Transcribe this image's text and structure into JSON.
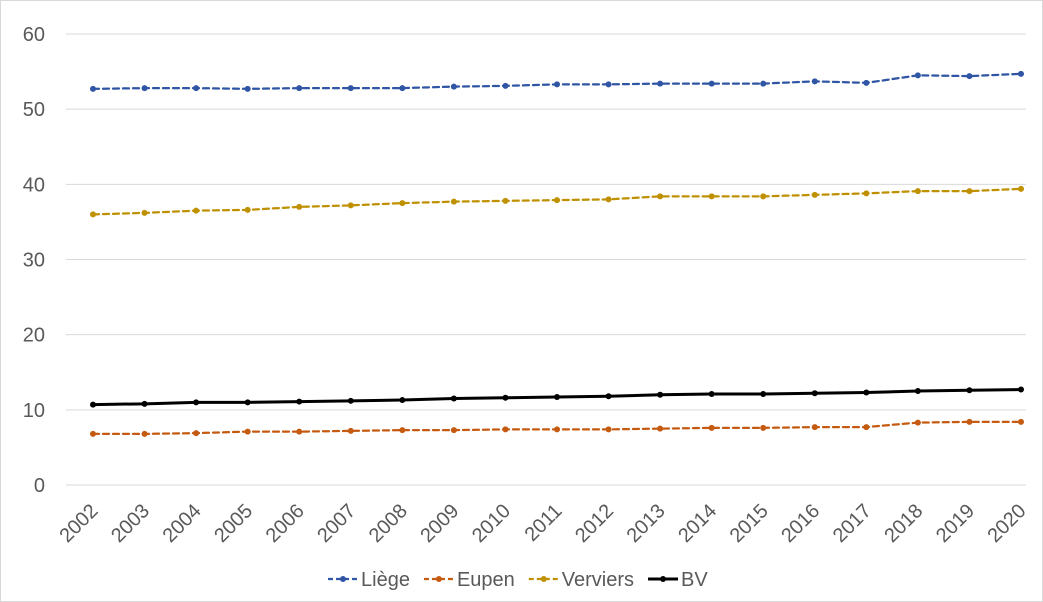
{
  "chart_data": {
    "type": "line",
    "title": "",
    "xlabel": "",
    "ylabel": "",
    "categories": [
      "2002",
      "2003",
      "2004",
      "2005",
      "2006",
      "2007",
      "2008",
      "2009",
      "2010",
      "2011",
      "2012",
      "2013",
      "2014",
      "2015",
      "2016",
      "2017",
      "2018",
      "2019",
      "2020"
    ],
    "ylim": [
      0,
      60
    ],
    "yticks": [
      0,
      10,
      20,
      30,
      40,
      50,
      60
    ],
    "grid": "horizontal",
    "legend_position": "bottom",
    "series": [
      {
        "name": "Liège",
        "color": "#2f55a4",
        "dash": "dashed",
        "marker": "dot",
        "values": [
          52.7,
          52.8,
          52.8,
          52.7,
          52.8,
          52.8,
          52.8,
          53.0,
          53.1,
          53.3,
          53.3,
          53.4,
          53.4,
          53.4,
          53.7,
          53.5,
          54.5,
          54.4,
          54.7
        ]
      },
      {
        "name": "Eupen",
        "color": "#c55a11",
        "dash": "dashed",
        "marker": "dot",
        "values": [
          6.8,
          6.8,
          6.9,
          7.1,
          7.1,
          7.2,
          7.3,
          7.3,
          7.4,
          7.4,
          7.4,
          7.5,
          7.6,
          7.6,
          7.7,
          7.7,
          8.3,
          8.4,
          8.4
        ]
      },
      {
        "name": "Verviers",
        "color": "#bf9000",
        "dash": "dashed",
        "marker": "dot",
        "values": [
          36.0,
          36.2,
          36.5,
          36.6,
          37.0,
          37.2,
          37.5,
          37.7,
          37.8,
          37.9,
          38.0,
          38.4,
          38.4,
          38.4,
          38.6,
          38.8,
          39.1,
          39.1,
          39.4
        ]
      },
      {
        "name": "BV",
        "color": "#000000",
        "dash": "solid",
        "marker": "dot",
        "values": [
          10.7,
          10.8,
          11.0,
          11.0,
          11.1,
          11.2,
          11.3,
          11.5,
          11.6,
          11.7,
          11.8,
          12.0,
          12.1,
          12.1,
          12.2,
          12.3,
          12.5,
          12.6,
          12.7
        ]
      }
    ]
  }
}
